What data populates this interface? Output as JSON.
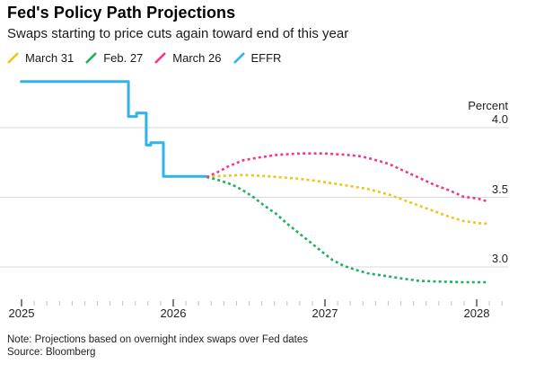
{
  "header": {
    "title": "Fed's Policy Path Projections",
    "subtitle": "Swaps starting to price cuts again toward end of this year"
  },
  "footer": {
    "note": "Note: Projections based on overnight index swaps over Fed dates",
    "source": "Source: Bloomberg"
  },
  "chart_data": {
    "type": "line",
    "title": "Fed's Policy Path Projections",
    "subtitle": "Swaps starting to price cuts again toward end of this year",
    "ylabel": "Percent",
    "grid": "horizontal-only",
    "legend_position": "top-left",
    "x_ticks_years": [
      "2025",
      "2026",
      "2027",
      "2028"
    ],
    "x_minor_tick_unit": "month",
    "x_range": [
      2024.99,
      2028.17
    ],
    "y_gridlines": [
      4.0,
      3.5,
      3.0
    ],
    "y_tick_labels": [
      "4.0",
      "3.5",
      "3.0"
    ],
    "y_range": [
      2.8,
      4.45
    ],
    "colors": {
      "yellow": "#F3C317",
      "green": "#1CB15E",
      "magenta": "#F0388E",
      "cyan": "#2FB4E9",
      "gridline": "#D8D8D8",
      "minor_tick": "#C2C2C2",
      "major_tick": "#4A4A4A"
    },
    "series": [
      {
        "name": "March 31",
        "color": "#F3C317",
        "style": "dotted",
        "points": [
          [
            2026.22,
            3.645
          ],
          [
            2026.34,
            3.655
          ],
          [
            2026.46,
            3.66
          ],
          [
            2026.57,
            3.655
          ],
          [
            2026.69,
            3.645
          ],
          [
            2026.81,
            3.635
          ],
          [
            2026.93,
            3.62
          ],
          [
            2027.05,
            3.6
          ],
          [
            2027.17,
            3.58
          ],
          [
            2027.28,
            3.56
          ],
          [
            2027.42,
            3.52
          ],
          [
            2027.52,
            3.48
          ],
          [
            2027.62,
            3.44
          ],
          [
            2027.72,
            3.4
          ],
          [
            2027.82,
            3.36
          ],
          [
            2027.91,
            3.33
          ],
          [
            2028.01,
            3.315
          ],
          [
            2028.07,
            3.31
          ]
        ]
      },
      {
        "name": "Feb. 27",
        "color": "#1CB15E",
        "style": "dotted",
        "points": [
          [
            2026.22,
            3.645
          ],
          [
            2026.31,
            3.62
          ],
          [
            2026.39,
            3.59
          ],
          [
            2026.46,
            3.55
          ],
          [
            2026.53,
            3.5
          ],
          [
            2026.6,
            3.44
          ],
          [
            2026.68,
            3.38
          ],
          [
            2026.75,
            3.31
          ],
          [
            2026.82,
            3.25
          ],
          [
            2026.9,
            3.18
          ],
          [
            2026.98,
            3.11
          ],
          [
            2027.05,
            3.05
          ],
          [
            2027.12,
            3.01
          ],
          [
            2027.2,
            2.98
          ],
          [
            2027.28,
            2.955
          ],
          [
            2027.37,
            2.94
          ],
          [
            2027.49,
            2.92
          ],
          [
            2027.62,
            2.9
          ],
          [
            2027.76,
            2.895
          ],
          [
            2027.91,
            2.89
          ],
          [
            2028.07,
            2.89
          ]
        ]
      },
      {
        "name": "March 26",
        "color": "#F0388E",
        "style": "dotted",
        "points": [
          [
            2026.22,
            3.645
          ],
          [
            2026.31,
            3.69
          ],
          [
            2026.36,
            3.72
          ],
          [
            2026.46,
            3.765
          ],
          [
            2026.56,
            3.785
          ],
          [
            2026.69,
            3.805
          ],
          [
            2026.84,
            3.815
          ],
          [
            2026.99,
            3.815
          ],
          [
            2027.14,
            3.805
          ],
          [
            2027.23,
            3.795
          ],
          [
            2027.31,
            3.775
          ],
          [
            2027.42,
            3.74
          ],
          [
            2027.52,
            3.69
          ],
          [
            2027.62,
            3.64
          ],
          [
            2027.72,
            3.59
          ],
          [
            2027.82,
            3.55
          ],
          [
            2027.91,
            3.505
          ],
          [
            2028.01,
            3.49
          ],
          [
            2028.07,
            3.47
          ]
        ]
      },
      {
        "name": "EFFR",
        "color": "#2FB4E9",
        "style": "solid",
        "points": [
          [
            2024.99,
            4.33
          ],
          [
            2025.705,
            4.33
          ],
          [
            2025.705,
            4.08
          ],
          [
            2025.758,
            4.08
          ],
          [
            2025.758,
            4.105
          ],
          [
            2025.822,
            4.105
          ],
          [
            2025.822,
            3.875
          ],
          [
            2025.852,
            3.875
          ],
          [
            2025.852,
            3.892
          ],
          [
            2025.935,
            3.892
          ],
          [
            2025.935,
            3.65
          ],
          [
            2026.22,
            3.65
          ]
        ]
      }
    ]
  }
}
